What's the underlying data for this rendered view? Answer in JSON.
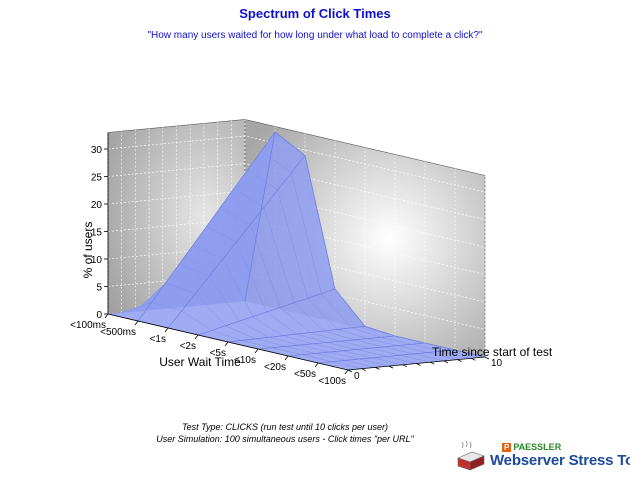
{
  "chart_data": {
    "type": "area",
    "title": "Spectrum of Click Times",
    "subtitle": "\"How many users waited for how long under what load to complete a click?\"",
    "xlabel": "User Wait Time",
    "ylabel": "% of users",
    "zlabel": "Time since start of test",
    "categories": [
      "<100ms",
      "<500ms",
      "<1s",
      "<2s",
      "<5s",
      "<10s",
      "<20s",
      "<50s",
      "<100s"
    ],
    "ylim": [
      0,
      33
    ],
    "yticks": [
      0,
      5,
      10,
      15,
      20,
      25,
      30
    ],
    "zticks": [
      "0",
      "10"
    ],
    "depth_steps": [
      0,
      1,
      2,
      3,
      4,
      5,
      6,
      7,
      8,
      9,
      10
    ],
    "series_color": "#8e9cf0",
    "surface_front": [
      0,
      0,
      0,
      0,
      0,
      0,
      0,
      0,
      0
    ],
    "surface_back": [
      0,
      32,
      29,
      6,
      0.5,
      0,
      0,
      0,
      0
    ]
  },
  "footer": {
    "line1": "Test Type: CLICKS (run test until 10 clicks per user)",
    "line2": "User Simulation: 100 simultaneous users - Click times \"per URL\""
  },
  "logo": {
    "brand": "PAESSLER",
    "product": "Webserver Stress Tool"
  }
}
